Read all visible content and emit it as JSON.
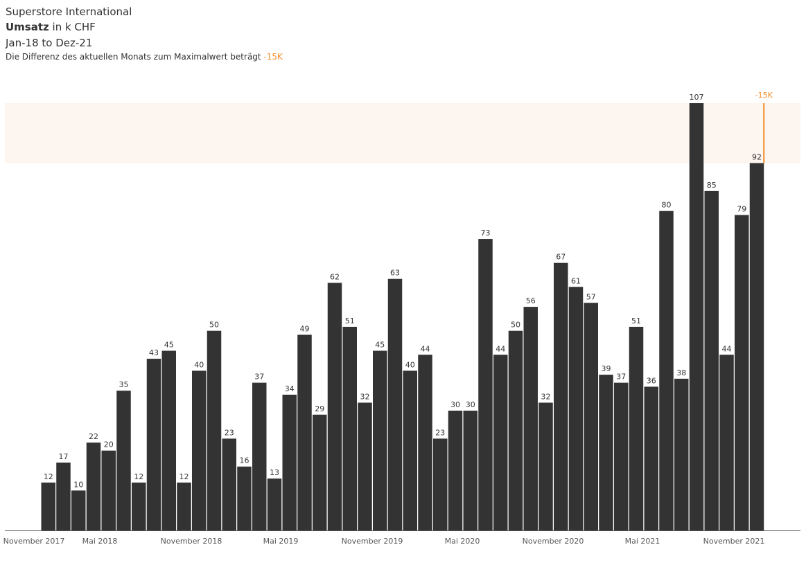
{
  "header": {
    "title": "Superstore International",
    "measure_bold": "Umsatz",
    "measure_rest": " in k CHF",
    "range": "Jan-18 to Dez-21",
    "subtitle_text": "Die Differenz des aktuellen Monats zum Maximalwert beträgt ",
    "subtitle_value": "-15K"
  },
  "colors": {
    "bar": "#333333",
    "accent": "#f28e2b",
    "band": "#fdf5ef",
    "axis": "#555555"
  },
  "chart_data": {
    "type": "bar",
    "x": [
      "Jan-18",
      "Feb-18",
      "Mär-18",
      "Apr-18",
      "Mai-18",
      "Jun-18",
      "Jul-18",
      "Aug-18",
      "Sep-18",
      "Okt-18",
      "Nov-18",
      "Dez-18",
      "Jan-19",
      "Feb-19",
      "Mär-19",
      "Apr-19",
      "Mai-19",
      "Jun-19",
      "Jul-19",
      "Aug-19",
      "Sep-19",
      "Okt-19",
      "Nov-19",
      "Dez-19",
      "Jan-20",
      "Feb-20",
      "Mär-20",
      "Apr-20",
      "Mai-20",
      "Jun-20",
      "Jul-20",
      "Aug-20",
      "Sep-20",
      "Okt-20",
      "Nov-20",
      "Dez-20",
      "Jan-21",
      "Feb-21",
      "Mär-21",
      "Apr-21",
      "Mai-21",
      "Jun-21",
      "Jul-21",
      "Aug-21",
      "Sep-21",
      "Okt-21",
      "Nov-21",
      "Dez-21"
    ],
    "values": [
      12,
      17,
      10,
      22,
      20,
      35,
      12,
      43,
      45,
      12,
      40,
      50,
      23,
      16,
      37,
      13,
      34,
      49,
      29,
      62,
      51,
      32,
      45,
      63,
      40,
      44,
      23,
      30,
      30,
      73,
      44,
      50,
      56,
      32,
      67,
      61,
      57,
      39,
      37,
      51,
      36,
      80,
      38,
      107,
      85,
      44,
      79,
      92
    ],
    "max_value": 107,
    "current_value": 92,
    "difference_label": "-15K",
    "ylim": [
      0,
      107
    ],
    "xticks": [
      "November 2017",
      "Mai 2018",
      "November 2018",
      "Mai 2019",
      "November 2019",
      "Mai 2020",
      "November 2020",
      "Mai 2021",
      "November 2021"
    ]
  }
}
